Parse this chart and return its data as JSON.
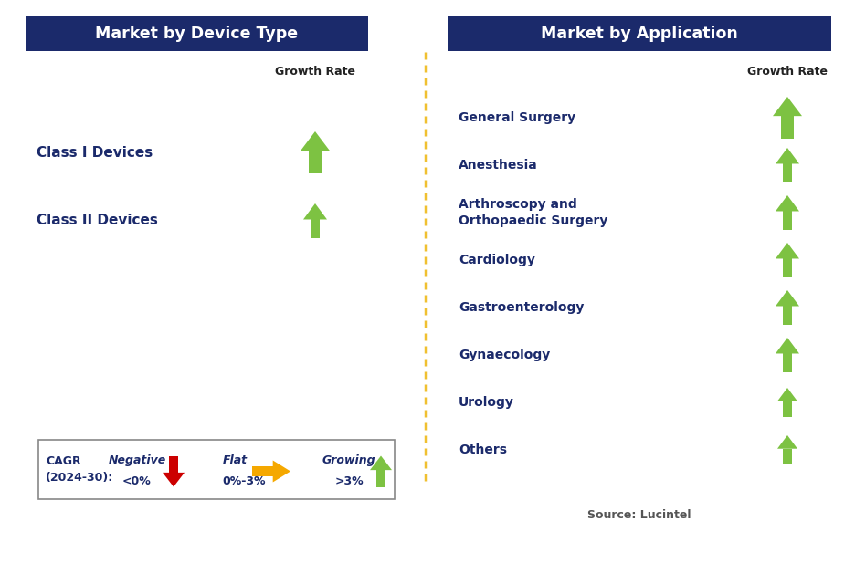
{
  "title_left": "Market by Device Type",
  "title_right": "Market by Application",
  "title_bg_color": "#1b2a6b",
  "title_text_color": "#ffffff",
  "left_items": [
    {
      "label": "Class I Devices",
      "arrow": "up_large"
    },
    {
      "label": "Class II Devices",
      "arrow": "up_medium"
    }
  ],
  "right_items": [
    {
      "label": "General Surgery",
      "arrow": "up_large"
    },
    {
      "label": "Anesthesia",
      "arrow": "up_medium"
    },
    {
      "label": "Arthroscopy and\nOrthopaedic Surgery",
      "arrow": "up_medium"
    },
    {
      "label": "Cardiology",
      "arrow": "up_medium"
    },
    {
      "label": "Gastroenterology",
      "arrow": "up_medium"
    },
    {
      "label": "Gynaecology",
      "arrow": "up_medium"
    },
    {
      "label": "Urology",
      "arrow": "up_small"
    },
    {
      "label": "Others",
      "arrow": "up_small"
    }
  ],
  "item_text_color": "#1b2a6b",
  "growth_rate_label": "Growth Rate",
  "growth_rate_color": "#222222",
  "arrow_up_color": "#7dc242",
  "arrow_down_color": "#cc0000",
  "arrow_flat_color": "#f5a800",
  "source_text": "Source: Lucintel",
  "bg_color": "#ffffff",
  "divider_color": "#f0c030",
  "border_color": "#888888",
  "fig_w": 9.37,
  "fig_h": 6.17,
  "dpi": 100
}
